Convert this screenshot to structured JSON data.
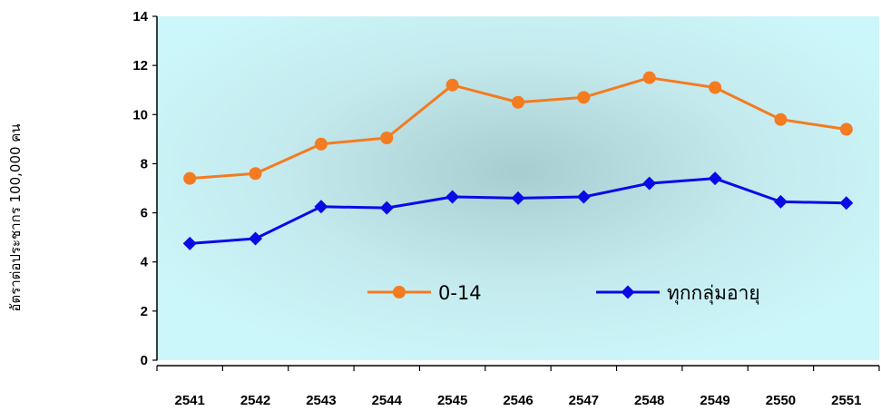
{
  "chart_data": {
    "type": "line",
    "title": "",
    "xlabel": "",
    "ylabel": "อัตราต่อประชากร 100,000 คน",
    "categories": [
      "2541",
      "2542",
      "2543",
      "2544",
      "2545",
      "2546",
      "2547",
      "2548",
      "2549",
      "2550",
      "2551"
    ],
    "ylim": [
      0,
      14
    ],
    "yticks": [
      "0",
      "2",
      "4",
      "6",
      "8",
      "10",
      "12",
      "14"
    ],
    "grid": false,
    "legend_position": "center",
    "series": [
      {
        "name": "0-14",
        "color": "#f47b20",
        "marker": "circle",
        "values": [
          7.4,
          7.6,
          8.8,
          9.05,
          11.2,
          10.5,
          10.7,
          11.5,
          11.1,
          9.8,
          9.4
        ]
      },
      {
        "name": "ทุกกลุ่มอายุ",
        "color": "#0a0ae6",
        "marker": "diamond",
        "values": [
          4.75,
          4.95,
          6.25,
          6.2,
          6.65,
          6.6,
          6.65,
          7.2,
          7.4,
          6.45,
          6.4
        ]
      }
    ]
  }
}
